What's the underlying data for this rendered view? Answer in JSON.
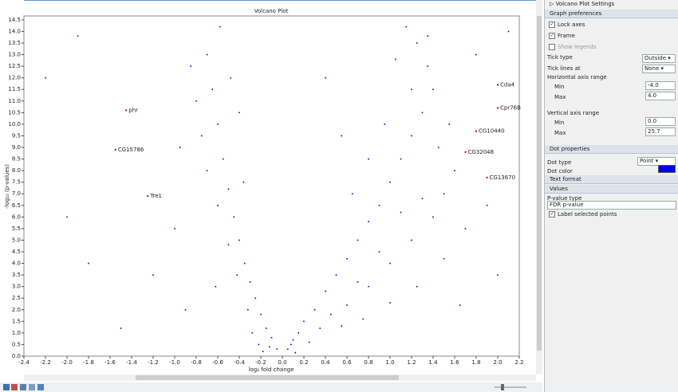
{
  "chart_data": {
    "type": "scatter",
    "title": "Volcano Plot",
    "x_label": "log₂ fold change",
    "y_label": "-log₁₀ (p-values)",
    "xlim": [
      -2.4,
      2.2
    ],
    "xticks": [
      {
        "value": -2.4,
        "label": "-2.4"
      },
      -2.2,
      {
        "value": -2,
        "label": "-2.0"
      },
      -1.8,
      -1.6,
      -1.4,
      -1.2,
      {
        "value": -1,
        "label": "-1.0"
      },
      -0.8,
      -0.6,
      -0.4,
      -0.2,
      {
        "value": 0,
        "label": "0.0"
      },
      0.2,
      0.4,
      0.6,
      0.8,
      {
        "value": 1,
        "label": "1.0"
      },
      1.2,
      1.4,
      1.6,
      1.8,
      {
        "value": 2,
        "label": "2.0"
      },
      2.2
    ],
    "ylim": [
      0,
      14.6
    ],
    "yticks": [
      {
        "value": 0,
        "label": "0.0"
      },
      0.5,
      {
        "value": 1,
        "label": "1.0"
      },
      1.5,
      {
        "value": 2,
        "label": "2.0"
      },
      2.5,
      {
        "value": 3,
        "label": "3.0"
      },
      3.5,
      {
        "value": 4,
        "label": "4.0"
      },
      4.5,
      {
        "value": 5,
        "label": "5.0"
      },
      5.5,
      {
        "value": 6,
        "label": "6.0"
      },
      6.5,
      {
        "value": 7,
        "label": "7.0"
      },
      7.5,
      {
        "value": 8,
        "label": "8.0"
      },
      8.5,
      {
        "value": 9,
        "label": "9.0"
      },
      9.5,
      {
        "value": 10,
        "label": "10.0"
      },
      10.5,
      {
        "value": 11,
        "label": "11.0"
      },
      11.5,
      {
        "value": 12,
        "label": "12.0"
      },
      12.5,
      {
        "value": 13,
        "label": "13.0"
      },
      13.5,
      {
        "value": 14,
        "label": "14.0"
      },
      14.5
    ],
    "series": [
      {
        "color": "#0000ee",
        "x": [
          -0.05,
          -0.1,
          -0.15,
          -0.2,
          -0.25,
          -0.3,
          -0.35,
          -0.4,
          -0.45,
          -0.5,
          -0.55,
          -0.6,
          -0.65,
          -0.7,
          -0.58,
          -0.32,
          -0.28,
          -0.22,
          -0.42,
          -0.5,
          -0.6,
          -0.7,
          -0.75,
          -0.8,
          -0.85,
          -0.48,
          -0.4,
          -0.36,
          -0.62,
          -0.9,
          -1.0,
          -1.2,
          -1.5,
          -1.8,
          -2.0,
          -2.2,
          -1.9,
          -0.95,
          -0.18,
          -0.12,
          0.05,
          0.1,
          0.15,
          0.2,
          0.3,
          0.4,
          0.5,
          0.6,
          0.7,
          0.8,
          0.9,
          1.0,
          1.1,
          1.2,
          1.3,
          1.4,
          1.35,
          1.25,
          1.15,
          0.25,
          0.35,
          0.45,
          0.6,
          0.8,
          1.0,
          1.2,
          1.4,
          1.5,
          1.6,
          1.3,
          1.1,
          0.9,
          0.7,
          0.55,
          0.75,
          1.0,
          1.25,
          1.5,
          1.7,
          1.9,
          1.45,
          1.55,
          1.2,
          1.05,
          1.35,
          0.95,
          0.8,
          0.65,
          0.55,
          0.4,
          1.8,
          2.1,
          2.0,
          1.65,
          0.12,
          0.08
        ],
        "y": [
          0.3,
          0.8,
          1.2,
          1.8,
          2.5,
          3.2,
          4.0,
          5.0,
          6.0,
          7.2,
          8.5,
          10.0,
          11.5,
          13.0,
          14.2,
          2.0,
          1.0,
          0.5,
          3.5,
          4.8,
          6.5,
          8.0,
          9.5,
          11.0,
          12.5,
          12.0,
          10.5,
          7.5,
          3.0,
          2.0,
          5.5,
          3.5,
          1.2,
          4.0,
          6.0,
          12.0,
          13.8,
          9.0,
          0.2,
          0.4,
          0.3,
          0.7,
          1.0,
          1.5,
          2.0,
          2.8,
          3.5,
          4.2,
          5.0,
          5.8,
          6.5,
          7.5,
          8.5,
          9.5,
          10.5,
          11.5,
          12.5,
          13.5,
          14.2,
          0.6,
          1.2,
          1.8,
          2.2,
          3.0,
          4.0,
          5.0,
          6.0,
          7.0,
          8.0,
          6.8,
          6.2,
          4.5,
          3.2,
          1.3,
          1.6,
          2.3,
          3.0,
          4.2,
          5.5,
          6.5,
          9.0,
          10.0,
          11.5,
          12.8,
          13.8,
          10.0,
          8.5,
          7.0,
          9.5,
          12.0,
          13.0,
          14.0,
          3.5,
          2.2,
          0.15,
          0.5
        ]
      }
    ],
    "labeled_points": [
      {
        "name": "Cda4",
        "x": 2.0,
        "y": 11.7
      },
      {
        "name": "Cpr76B",
        "x": 2.0,
        "y": 10.7
      },
      {
        "name": "CG10440",
        "x": 1.8,
        "y": 9.7
      },
      {
        "name": "CG32048",
        "x": 1.7,
        "y": 8.8
      },
      {
        "name": "CG13670",
        "x": 1.9,
        "y": 7.7
      },
      {
        "name": "phr",
        "x": -1.45,
        "y": 10.6
      },
      {
        "name": "CG15786",
        "x": -1.55,
        "y": 8.9
      },
      {
        "name": "Tre1",
        "x": -1.25,
        "y": 6.9
      }
    ]
  },
  "settings_panel": {
    "title": "Volcano Plot Settings",
    "graph_preferences": {
      "heading": "Graph preferences",
      "checkboxes": [
        {
          "label": "Lock axes",
          "checked": true
        },
        {
          "label": "Frame",
          "checked": true
        },
        {
          "label": "Show legends",
          "checked": false
        }
      ],
      "tick_type": {
        "label": "Tick type",
        "value": "Outside"
      },
      "tick_lines": {
        "label": "Tick lines at",
        "value": "None"
      },
      "horizontal": {
        "heading": "Horizontal axis range",
        "min_label": "Min",
        "min": "-4.0",
        "max_label": "Max",
        "max": "4.0"
      },
      "vertical": {
        "heading": "Vertical axis range",
        "min_label": "Min",
        "min": "0.0",
        "max_label": "Max",
        "max": "25.7"
      }
    },
    "dot_properties": {
      "heading": "Dot properties",
      "dot_type_label": "Dot type",
      "dot_type": "Point",
      "dot_color_label": "Dot color",
      "dot_color": "#0000ee"
    },
    "text_format": "Text format",
    "values": {
      "heading": "Values",
      "pvalue_label": "P-value type",
      "pvalue": "FDR p-value",
      "label_points": {
        "label": "Label selected points",
        "checked": true
      }
    }
  }
}
